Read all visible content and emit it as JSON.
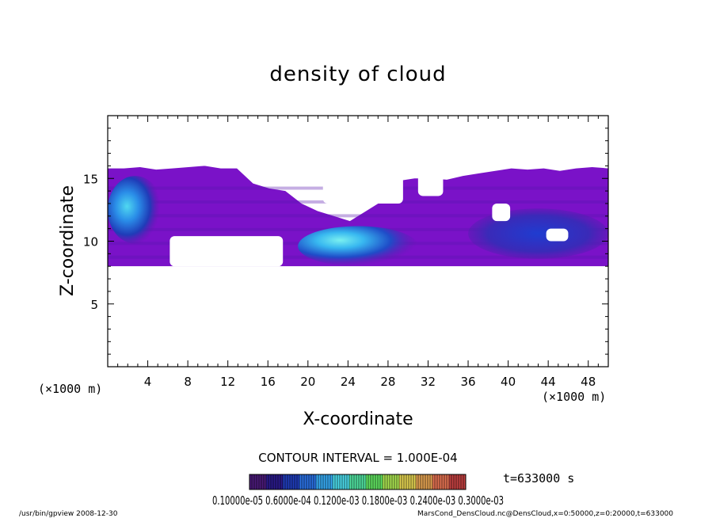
{
  "chart_data": {
    "type": "heatmap",
    "title": "density of cloud",
    "xlabel": "X-coordinate",
    "ylabel": "Z-coordinate",
    "x_unit_label_left": "(×1000 m)",
    "x_unit_label_right": "(×1000 m)",
    "xlim": [
      0,
      50
    ],
    "ylim": [
      0,
      20
    ],
    "x_ticks": [
      4,
      8,
      12,
      16,
      20,
      24,
      28,
      32,
      36,
      40,
      44,
      48
    ],
    "x_tick_labels": [
      "4",
      "8",
      "12",
      "16",
      "20",
      "24",
      "28",
      "32",
      "36",
      "40",
      "44",
      "48"
    ],
    "y_ticks": [
      5,
      10,
      15
    ],
    "y_tick_labels": [
      "5",
      "10",
      "15"
    ],
    "x_minor_step": 1,
    "y_minor_step": 1,
    "contour_interval_text": "CONTOUR INTERVAL = 1.000E-04",
    "time_text": "t=633000 s",
    "colorbar_labels_text": "0.10000e-05 0.6000e-04 0.1200e-03 0.1800e-03 0.2400e-03 0.3000e-03",
    "colorbar_colors": [
      "#4a1a78",
      "#2a1a8a",
      "#1f3cb8",
      "#2a6fe0",
      "#36a8f0",
      "#4ad8e8",
      "#50e0a0",
      "#60e060",
      "#a8e050",
      "#e0d050",
      "#e0a050",
      "#e07050",
      "#c04040"
    ],
    "cloud_band_zlim": [
      8,
      16
    ],
    "cloud_regions": [
      {
        "shape": "band",
        "x": [
          0,
          50
        ],
        "z_bottom": 8.0,
        "z_top": [
          15.8,
          15.8,
          15.9,
          15.7,
          15.8,
          15.9,
          16.0,
          15.8,
          15.8,
          14.6,
          14.2,
          14.0,
          13.0,
          12.4,
          12.0,
          11.6,
          12.4,
          13.2,
          14.8,
          15.0,
          15.0,
          14.9,
          15.2,
          15.4,
          15.6,
          15.8,
          15.7,
          15.8,
          15.6,
          15.8,
          15.9,
          15.8
        ]
      },
      {
        "shape": "blob",
        "label": "strong core left",
        "x": [
          0,
          5.5
        ],
        "z": [
          9.8,
          15.2
        ],
        "density": 0.00015
      },
      {
        "shape": "blob",
        "label": "strong core center",
        "x": [
          19,
          31
        ],
        "z": [
          8.0,
          11.2
        ],
        "density": 0.00022
      },
      {
        "shape": "blob",
        "label": "mid-level band right",
        "x": [
          36,
          50
        ],
        "z": [
          8.6,
          12.6
        ],
        "density": 8e-05
      }
    ],
    "holes": [
      {
        "x": [
          6.2,
          17.5
        ],
        "z": [
          8.0,
          10.4
        ]
      },
      {
        "x": [
          21.5,
          29.5
        ],
        "z": [
          13.0,
          16.0
        ]
      },
      {
        "x": [
          31.0,
          33.5
        ],
        "z": [
          13.6,
          16.0
        ]
      },
      {
        "x": [
          38.4,
          40.2
        ],
        "z": [
          11.6,
          13.0
        ]
      },
      {
        "x": [
          43.8,
          46.0
        ],
        "z": [
          10.0,
          11.0
        ]
      },
      {
        "x": [
          0,
          50
        ],
        "z": [
          16.0,
          20.0
        ]
      }
    ],
    "grid": false
  },
  "footer": {
    "left": "/usr/bin/gpview   2008-12-30",
    "right": "MarsCond_DensCloud.nc@DensCloud,x=0:50000,z=0:20000,t=633000"
  }
}
